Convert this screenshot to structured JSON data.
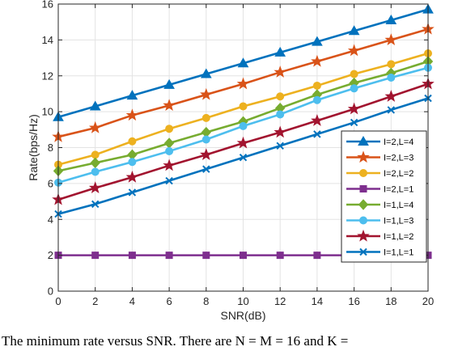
{
  "chart_data": {
    "type": "line",
    "xlabel": "SNR(dB)",
    "ylabel": "Rate(bps/Hz)",
    "xlim": [
      0,
      20
    ],
    "ylim": [
      0,
      16
    ],
    "x_ticks": [
      0,
      2,
      4,
      6,
      8,
      10,
      12,
      14,
      16,
      18,
      20
    ],
    "y_ticks": [
      0,
      2,
      4,
      6,
      8,
      10,
      12,
      14,
      16
    ],
    "grid": true,
    "legend_position": "lower-right",
    "x": [
      0,
      2,
      4,
      6,
      8,
      10,
      12,
      14,
      16,
      18,
      20
    ],
    "series": [
      {
        "name": "I=2,L=4",
        "color": "#0072BD",
        "marker": "triangle",
        "values": [
          9.7,
          10.3,
          10.9,
          11.5,
          12.1,
          12.7,
          13.3,
          13.9,
          14.5,
          15.1,
          15.7
        ]
      },
      {
        "name": "I=2,L=3",
        "color": "#D95319",
        "marker": "star",
        "values": [
          8.6,
          9.1,
          9.8,
          10.35,
          10.95,
          11.55,
          12.2,
          12.8,
          13.4,
          14.0,
          14.6
        ]
      },
      {
        "name": "I=2,L=2",
        "color": "#EDB120",
        "marker": "circle",
        "values": [
          7.05,
          7.6,
          8.35,
          9.05,
          9.65,
          10.3,
          10.85,
          11.45,
          12.1,
          12.65,
          13.25
        ]
      },
      {
        "name": "I=2,L=1",
        "color": "#7E2F8E",
        "marker": "square",
        "values": [
          2.0,
          2.0,
          2.0,
          2.0,
          2.0,
          2.0,
          2.0,
          2.0,
          2.0,
          2.0,
          2.0
        ]
      },
      {
        "name": "I=1,L=4",
        "color": "#77AC30",
        "marker": "diamond",
        "values": [
          6.7,
          7.15,
          7.6,
          8.25,
          8.85,
          9.45,
          10.2,
          10.95,
          11.6,
          12.15,
          12.8
        ]
      },
      {
        "name": "I=1,L=3",
        "color": "#4DBEEE",
        "marker": "circle",
        "values": [
          6.05,
          6.65,
          7.2,
          7.8,
          8.45,
          9.2,
          9.85,
          10.65,
          11.3,
          11.9,
          12.45
        ]
      },
      {
        "name": "I=1,L=2",
        "color": "#A2142F",
        "marker": "star",
        "values": [
          5.1,
          5.75,
          6.35,
          7.0,
          7.6,
          8.25,
          8.85,
          9.5,
          10.15,
          10.85,
          11.55
        ]
      },
      {
        "name": "I=1,L=1",
        "color": "#0072BD",
        "marker": "x",
        "values": [
          4.3,
          4.85,
          5.5,
          6.15,
          6.8,
          7.45,
          8.1,
          8.75,
          9.4,
          10.1,
          10.75
        ]
      }
    ]
  },
  "caption": {
    "text": "The minimum rate versus SNR. There are N = M = 16 and K ="
  }
}
